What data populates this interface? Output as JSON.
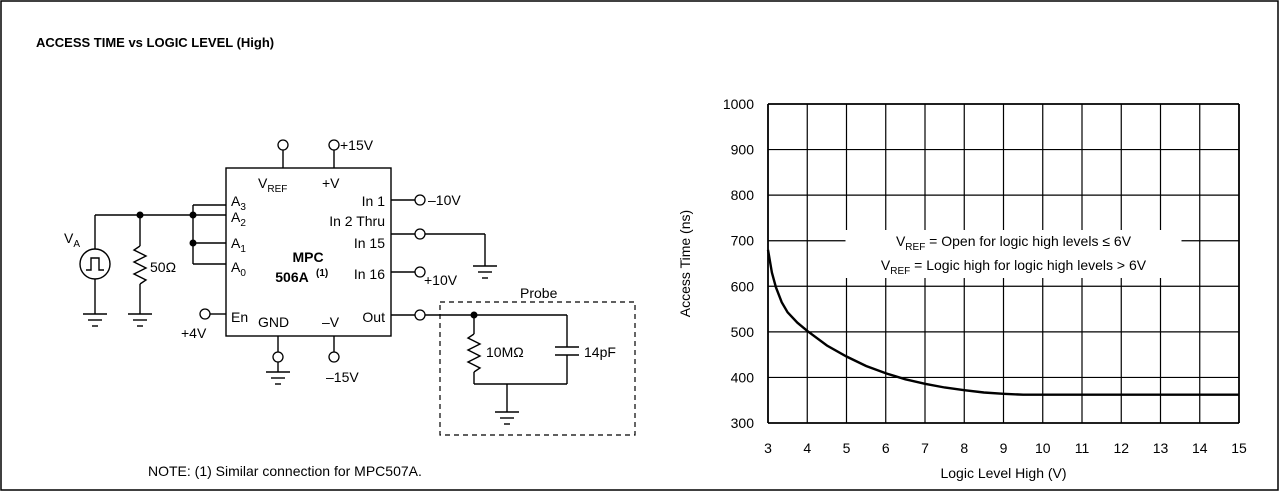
{
  "figure": {
    "title": "ACCESS TIME vs LOGIC LEVEL (High)",
    "note": "NOTE: (1) Similar connection for MPC507A."
  },
  "circuit": {
    "chip_line1": "MPC",
    "chip_line2": "506A",
    "chip_sup": "(1)",
    "pins_left": [
      {
        "base": "A",
        "sub": "3"
      },
      {
        "base": "A",
        "sub": "2"
      },
      {
        "base": "A",
        "sub": "1"
      },
      {
        "base": "A",
        "sub": "0"
      }
    ],
    "pin_en": "En",
    "pin_vref_base": "V",
    "pin_vref_sub": "REF",
    "pin_vplus": "+V",
    "pin_gnd": "GND",
    "pin_vminus": "–V",
    "pin_in1": "In 1",
    "pin_in2": "In 2 Thru",
    "pin_in15": "In 15",
    "pin_in16": "In 16",
    "pin_out": "Out",
    "supply_plus15": "+15V",
    "supply_minus15": "–15V",
    "supply_plus4": "+4V",
    "supply_minus10": "–10V",
    "supply_plus10": "+10V",
    "source_base": "V",
    "source_sub": "A",
    "resistor_50": "50Ω",
    "probe_label": "Probe",
    "probe_resistor": "10MΩ",
    "probe_cap": "14pF"
  },
  "chart_data": {
    "type": "line",
    "xlabel": "Logic Level High (V)",
    "ylabel": "Access Time (ns)",
    "xlim": [
      3,
      15
    ],
    "ylim": [
      300,
      1000
    ],
    "xticks": [
      3,
      4,
      5,
      6,
      7,
      8,
      9,
      10,
      11,
      12,
      13,
      14,
      15
    ],
    "yticks": [
      300,
      400,
      500,
      600,
      700,
      800,
      900,
      1000
    ],
    "grid": true,
    "series": [
      {
        "x": [
          3.0,
          3.1,
          3.2,
          3.35,
          3.5,
          3.75,
          4.0,
          4.5,
          5.0,
          5.5,
          6.0,
          6.5,
          7.0,
          7.5,
          8.0,
          8.5,
          9.0,
          9.5,
          10.0,
          11.0,
          12.0,
          13.0,
          14.0,
          15.0
        ],
        "y": [
          680,
          630,
          598,
          565,
          543,
          520,
          502,
          470,
          446,
          425,
          409,
          396,
          386,
          378,
          372,
          367,
          364,
          362,
          362,
          362,
          362,
          362,
          362,
          362
        ]
      }
    ],
    "annotations": [
      {
        "base": "V",
        "sub": "REF",
        "text": " = Open for logic high levels ≤ 6V"
      },
      {
        "base": "V",
        "sub": "REF",
        "text": " = Logic high for logic high levels > 6V"
      }
    ]
  }
}
